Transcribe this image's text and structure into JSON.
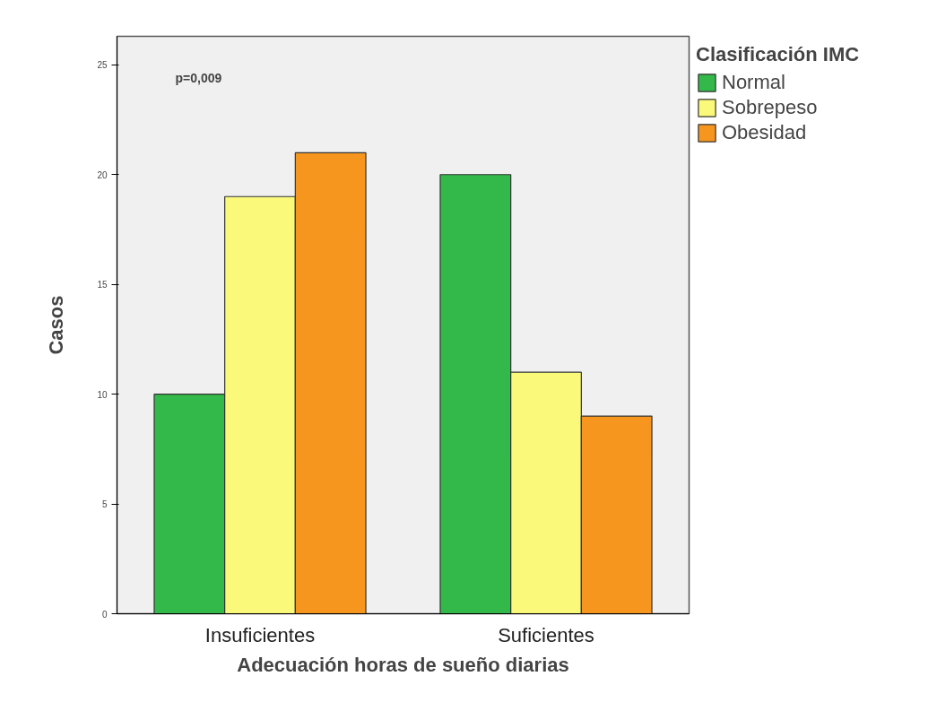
{
  "chart_data": {
    "type": "bar",
    "xlabel": "Adecuación horas de sueño diarias",
    "ylabel": "Casos",
    "legend_title": "Clasificación IMC",
    "categories": [
      "Insuficientes",
      "Suficientes"
    ],
    "series": [
      {
        "name": "Normal",
        "color": "#33b84a",
        "values": [
          10,
          20
        ]
      },
      {
        "name": "Sobrepeso",
        "color": "#fbf97a",
        "values": [
          19,
          11
        ]
      },
      {
        "name": "Obesidad",
        "color": "#f7961e",
        "values": [
          21,
          9
        ]
      }
    ],
    "ylim": [
      0,
      26.3
    ],
    "yticks": [
      0,
      5,
      10,
      15,
      20,
      25
    ],
    "grid": false,
    "legend": "top right",
    "annotations": [
      "p=0,009"
    ]
  }
}
